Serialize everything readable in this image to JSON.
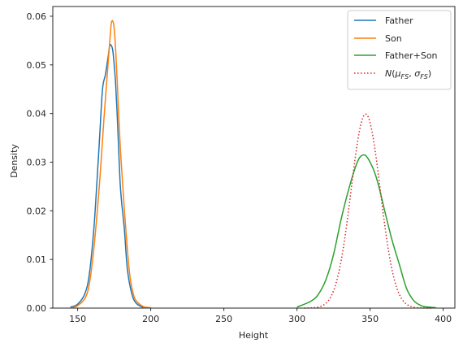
{
  "chart_data": {
    "type": "line",
    "title": "",
    "xlabel": "Height",
    "ylabel": "Density",
    "xlim": [
      133,
      408
    ],
    "ylim": [
      0,
      0.062
    ],
    "xticks": [
      150,
      200,
      250,
      300,
      350,
      400
    ],
    "yticks": [
      0.0,
      0.01,
      0.02,
      0.03,
      0.04,
      0.05,
      0.06
    ],
    "ytick_labels": [
      "0.00",
      "0.01",
      "0.02",
      "0.03",
      "0.04",
      "0.05",
      "0.06"
    ],
    "grid": false,
    "legend_position": "top-right",
    "series": [
      {
        "name": "Father",
        "color": "#1f77b4",
        "style": "solid",
        "x": [
          145,
          150,
          155,
          158,
          161,
          163,
          165,
          167,
          169,
          171,
          172,
          173,
          174,
          175,
          176,
          177,
          178,
          179,
          180,
          182,
          184,
          187,
          190,
          195
        ],
        "y": [
          0.0002,
          0.0008,
          0.003,
          0.007,
          0.016,
          0.025,
          0.035,
          0.045,
          0.048,
          0.052,
          0.054,
          0.054,
          0.053,
          0.05,
          0.046,
          0.04,
          0.033,
          0.026,
          0.022,
          0.016,
          0.008,
          0.003,
          0.001,
          0.0001
        ]
      },
      {
        "name": "Son",
        "color": "#ff7f0e",
        "style": "solid",
        "x": [
          146,
          150,
          155,
          158,
          161,
          164,
          166,
          168,
          170,
          172,
          173,
          174,
          175,
          176,
          177,
          178,
          179,
          180,
          182,
          184,
          186,
          188,
          190,
          195,
          200
        ],
        "y": [
          0.0001,
          0.0005,
          0.002,
          0.005,
          0.012,
          0.022,
          0.03,
          0.039,
          0.047,
          0.055,
          0.0585,
          0.059,
          0.0575,
          0.053,
          0.047,
          0.04,
          0.034,
          0.029,
          0.02,
          0.012,
          0.006,
          0.003,
          0.0015,
          0.0003,
          0.0001
        ]
      },
      {
        "name": "Father+Son",
        "color": "#2ca02c",
        "style": "solid",
        "x": [
          300,
          310,
          315,
          320,
          325,
          330,
          335,
          340,
          343,
          346,
          348,
          350,
          353,
          356,
          360,
          365,
          370,
          375,
          380,
          385,
          390,
          395
        ],
        "y": [
          0.0002,
          0.0015,
          0.003,
          0.006,
          0.011,
          0.018,
          0.024,
          0.029,
          0.031,
          0.0315,
          0.031,
          0.03,
          0.028,
          0.025,
          0.02,
          0.014,
          0.009,
          0.004,
          0.0015,
          0.0005,
          0.0002,
          0.0001
        ]
      },
      {
        "name": "N(μFS, σFS)",
        "color": "#d62728",
        "style": "dotted",
        "mu": 347,
        "sigma": 10,
        "x_range": [
          305,
          392
        ]
      }
    ]
  }
}
